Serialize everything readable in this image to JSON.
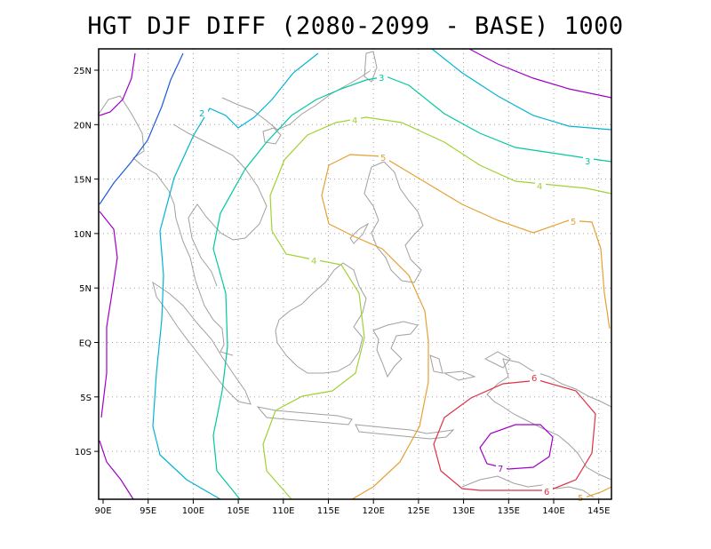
{
  "title": "HGT DJF DIFF (2080-2099 - BASE) 1000",
  "axes": {
    "x_ticks": [
      "90E",
      "95E",
      "100E",
      "105E",
      "110E",
      "115E",
      "120E",
      "125E",
      "130E",
      "135E",
      "140E",
      "145E"
    ],
    "y_ticks": [
      "25N",
      "20N",
      "15N",
      "10N",
      "5N",
      "EQ",
      "5S",
      "10S"
    ]
  },
  "contours": [
    {
      "level": "2",
      "color": "#00b4d2"
    },
    {
      "level": "3",
      "color": "#00c8a0"
    },
    {
      "level": "4",
      "color": "#a0d232"
    },
    {
      "level": "5",
      "color": "#e6a032"
    },
    {
      "level": "6",
      "color": "#dc3246"
    },
    {
      "level": "7",
      "color": "#a000c8"
    }
  ],
  "colors": {
    "coastline": "#a0a0a0",
    "grid": "#a0a0a0",
    "c1": "#a000c8",
    "c1_5": "#1e5adc"
  }
}
